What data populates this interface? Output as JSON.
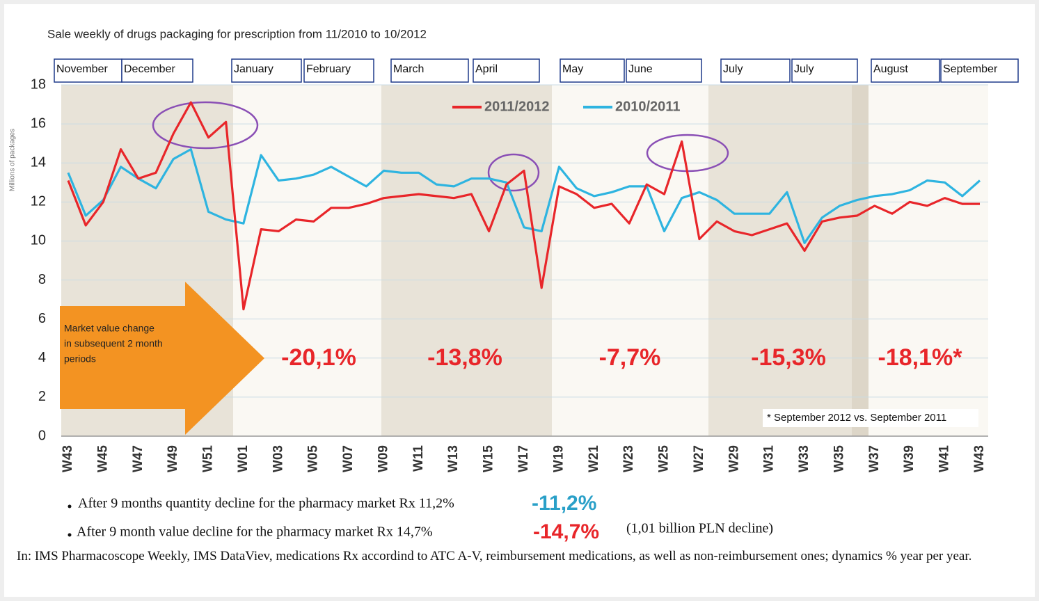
{
  "chart_data": {
    "type": "line",
    "title": "Sale weekly of drugs packaging for prescription from 11/2010 to 10/2012",
    "y_label": "Millions of packages",
    "months": [
      "November",
      "December",
      "January",
      "February",
      "March",
      "April",
      "May",
      "June",
      "July",
      "July",
      "August",
      "September"
    ],
    "categories": [
      "W43",
      null,
      "W45",
      null,
      "W47",
      null,
      "W49",
      null,
      "W51",
      null,
      "W01",
      null,
      "W03",
      null,
      "W05",
      null,
      "W07",
      null,
      "W09",
      null,
      "W11",
      null,
      "W13",
      null,
      "W15",
      null,
      "W17",
      null,
      "W19",
      null,
      "W21",
      null,
      "W23",
      null,
      "W25",
      null,
      "W27",
      null,
      "W29",
      null,
      "W31",
      null,
      "W33",
      null,
      "W35",
      null,
      "W37",
      null,
      "W39",
      null,
      "W41",
      null,
      "W43"
    ],
    "series": [
      {
        "name": "2011/2012",
        "color": "#e8262a",
        "values": [
          13.1,
          10.8,
          12.0,
          14.7,
          13.2,
          13.5,
          15.5,
          17.1,
          15.3,
          16.1,
          6.5,
          10.6,
          10.5,
          11.1,
          11.0,
          11.7,
          11.7,
          11.9,
          12.2,
          12.3,
          12.4,
          12.3,
          12.2,
          12.4,
          10.5,
          12.9,
          13.6,
          7.6,
          12.8,
          12.4,
          11.7,
          11.9,
          10.9,
          12.9,
          12.4,
          15.1,
          10.1,
          11.0,
          10.5,
          10.3,
          10.6,
          10.9,
          9.5,
          11.0,
          11.2,
          11.3,
          11.8,
          11.4,
          12.0,
          11.8,
          12.2,
          11.9,
          11.9
        ]
      },
      {
        "name": "2010/2011",
        "color": "#2eb4e0",
        "values": [
          13.5,
          11.3,
          12.1,
          13.8,
          13.2,
          12.7,
          14.2,
          14.7,
          11.5,
          11.1,
          10.9,
          14.4,
          13.1,
          13.2,
          13.4,
          13.8,
          13.3,
          12.8,
          13.6,
          13.5,
          13.5,
          12.9,
          12.8,
          13.2,
          13.2,
          13.0,
          10.7,
          10.5,
          13.8,
          12.7,
          12.3,
          12.5,
          12.8,
          12.8,
          10.5,
          12.2,
          12.5,
          12.1,
          11.4,
          11.4,
          11.4,
          12.5,
          9.9,
          11.2,
          11.8,
          12.1,
          12.3,
          12.4,
          12.6,
          13.1,
          13.0,
          12.3,
          13.1
        ]
      }
    ],
    "ylim": [
      0,
      18
    ],
    "yticks": [
      0,
      2,
      4,
      6,
      8,
      10,
      12,
      14,
      16,
      18
    ],
    "grid": true,
    "legend": "top",
    "arrow_text": [
      "Market value change",
      "in subsequent 2 month",
      "periods"
    ],
    "period_changes": [
      "-20,1%",
      "-13,8%",
      "-7,7%",
      "-15,3%",
      "-18,1%*"
    ],
    "footnote": "* September 2012 vs. September 2011",
    "bullets": [
      {
        "text": "After 9 months quantity decline for the pharmacy market Rx 11,2%",
        "highlight": "-11,2%"
      },
      {
        "text": "After 9 month value decline for the pharmacy market Rx 14,7%",
        "highlight": "-14,7%",
        "note": "(1,01 billion PLN decline)"
      }
    ],
    "source": "In: IMS Pharmacoscope Weekly, IMS DataViev, medications Rx accordind to ATC A-V, reimbursement medications, as well as non-reimbursement ones; dynamics % year per year."
  }
}
